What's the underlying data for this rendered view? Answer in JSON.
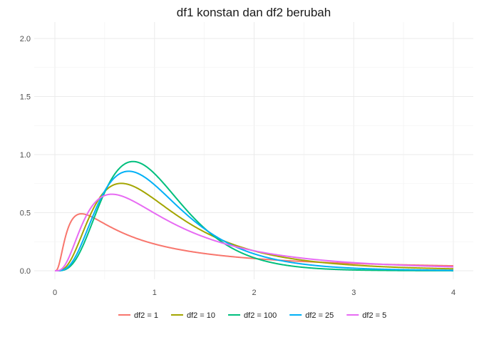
{
  "chart_data": {
    "type": "line",
    "title": "df1 konstan dan df2 berubah",
    "xlabel": "",
    "ylabel": "",
    "xlim": [
      0,
      4
    ],
    "ylim": [
      0,
      2.05
    ],
    "x_ticks": [
      "0",
      "1",
      "2",
      "3",
      "4"
    ],
    "y_ticks": [
      "0.0",
      "0.5",
      "1.0",
      "1.5",
      "2.0"
    ],
    "grid": true,
    "legend_position": "bottom",
    "df1": 10,
    "series": [
      {
        "name": "df2 = 1",
        "df2": 1,
        "color": "#F8766D"
      },
      {
        "name": "df2 = 10",
        "df2": 10,
        "color": "#A3A500"
      },
      {
        "name": "df2 = 100",
        "df2": 100,
        "color": "#00BF7D"
      },
      {
        "name": "df2 = 25",
        "df2": 25,
        "color": "#00B0F6"
      },
      {
        "name": "df2 = 5",
        "df2": 5,
        "color": "#E76BF3"
      }
    ]
  }
}
